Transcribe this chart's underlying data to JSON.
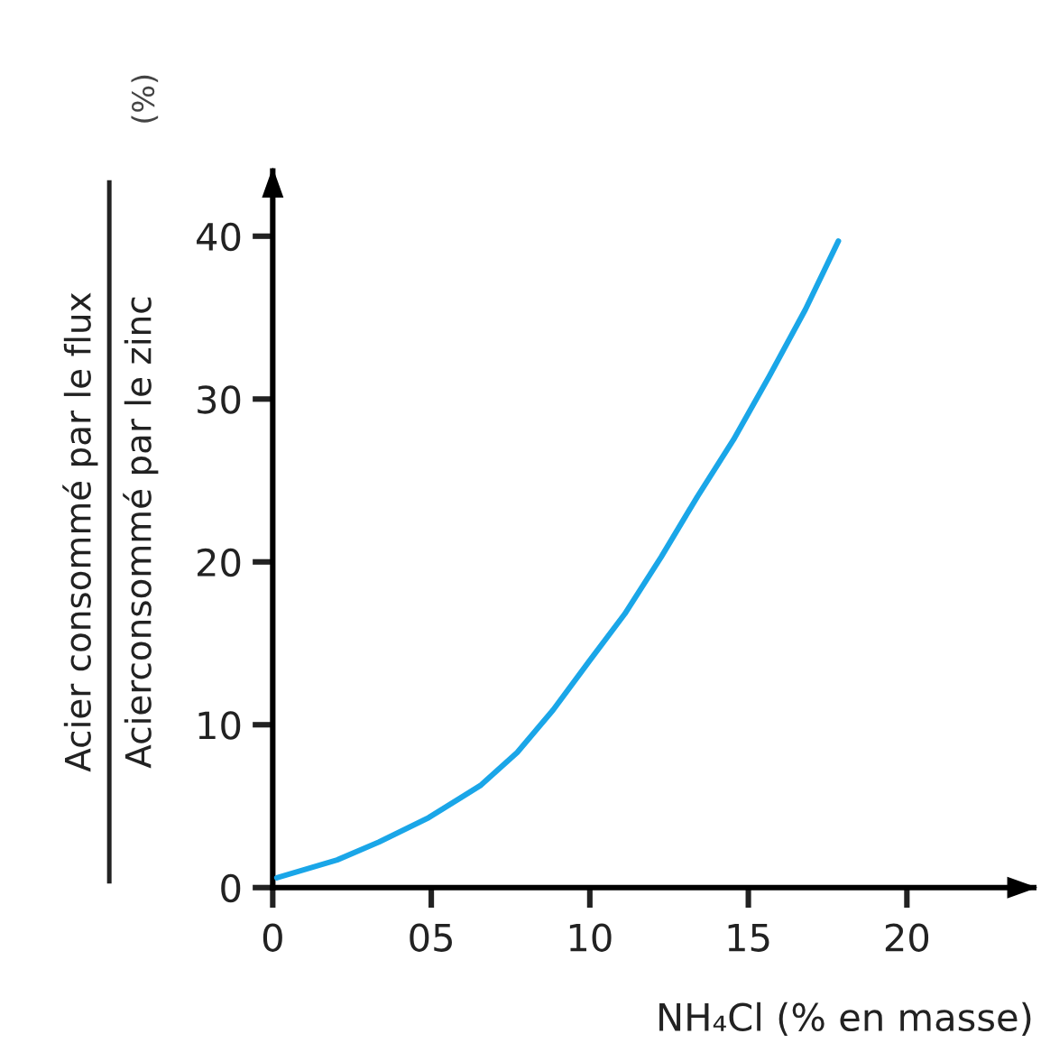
{
  "chart_data": {
    "type": "line",
    "xlabel": "NH₄Cl (% en masse)",
    "ylabel": "Acier consommé par le flux\nAcierconsommé par le zinc\n(%)",
    "x": [
      0.13,
      2.03,
      3.35,
      4.92,
      6.57,
      7.71,
      8.84,
      9.98,
      11.1,
      12.25,
      13.39,
      14.53,
      15.66,
      16.8,
      17.84
    ],
    "series": [
      {
        "color": "#1aa6e8",
        "values": [
          0.6,
          1.7,
          2.8,
          4.3,
          6.3,
          8.3,
          10.9,
          13.9,
          16.8,
          20.3,
          24.0,
          27.5,
          31.4,
          35.5,
          39.7
        ]
      }
    ],
    "xlim": [
      0,
      24
    ],
    "ylim": [
      0,
      44
    ],
    "xticks": [
      0,
      {
        "value": 5,
        "label": "05"
      },
      10,
      15,
      20
    ],
    "yticks": [
      0,
      10,
      20,
      30,
      40
    ],
    "grid": false,
    "legend": false,
    "marker": "none",
    "line_style": "solid"
  }
}
